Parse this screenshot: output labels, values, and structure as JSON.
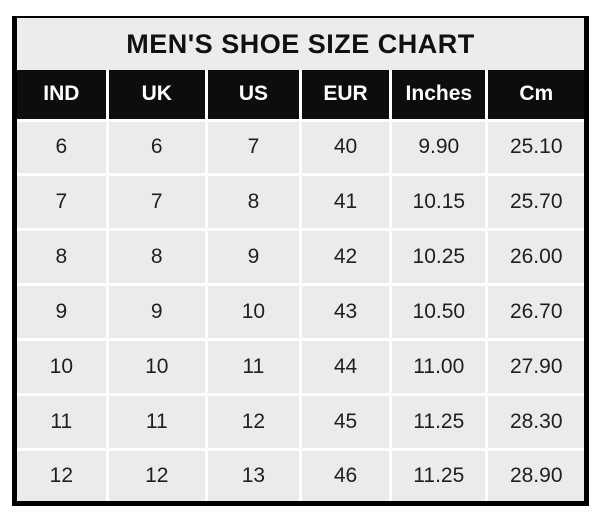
{
  "title": "MEN'S SHOE SIZE CHART",
  "chart_data": {
    "type": "table",
    "title": "MEN'S SHOE SIZE CHART",
    "columns": [
      "IND",
      "UK",
      "US",
      "EUR",
      "Inches",
      "Cm"
    ],
    "rows": [
      [
        "6",
        "6",
        "7",
        "40",
        "9.90",
        "25.10"
      ],
      [
        "7",
        "7",
        "8",
        "41",
        "10.15",
        "25.70"
      ],
      [
        "8",
        "8",
        "9",
        "42",
        "10.25",
        "26.00"
      ],
      [
        "9",
        "9",
        "10",
        "43",
        "10.50",
        "26.70"
      ],
      [
        "10",
        "10",
        "11",
        "44",
        "11.00",
        "27.90"
      ],
      [
        "11",
        "11",
        "12",
        "45",
        "11.25",
        "28.30"
      ],
      [
        "12",
        "12",
        "13",
        "46",
        "11.25",
        "28.90"
      ]
    ],
    "layout": {
      "grid": "on",
      "header_position": "top",
      "title_position": "top"
    }
  },
  "colors": {
    "page_bg": "#ffffff",
    "border": "#000000",
    "title_bg": "#ececec",
    "header_bg": "#0d0d0d",
    "header_text": "#ffffff",
    "cell_bg": "#ebebeb",
    "grid": "#ffffff",
    "text": "#1f1f1f"
  }
}
